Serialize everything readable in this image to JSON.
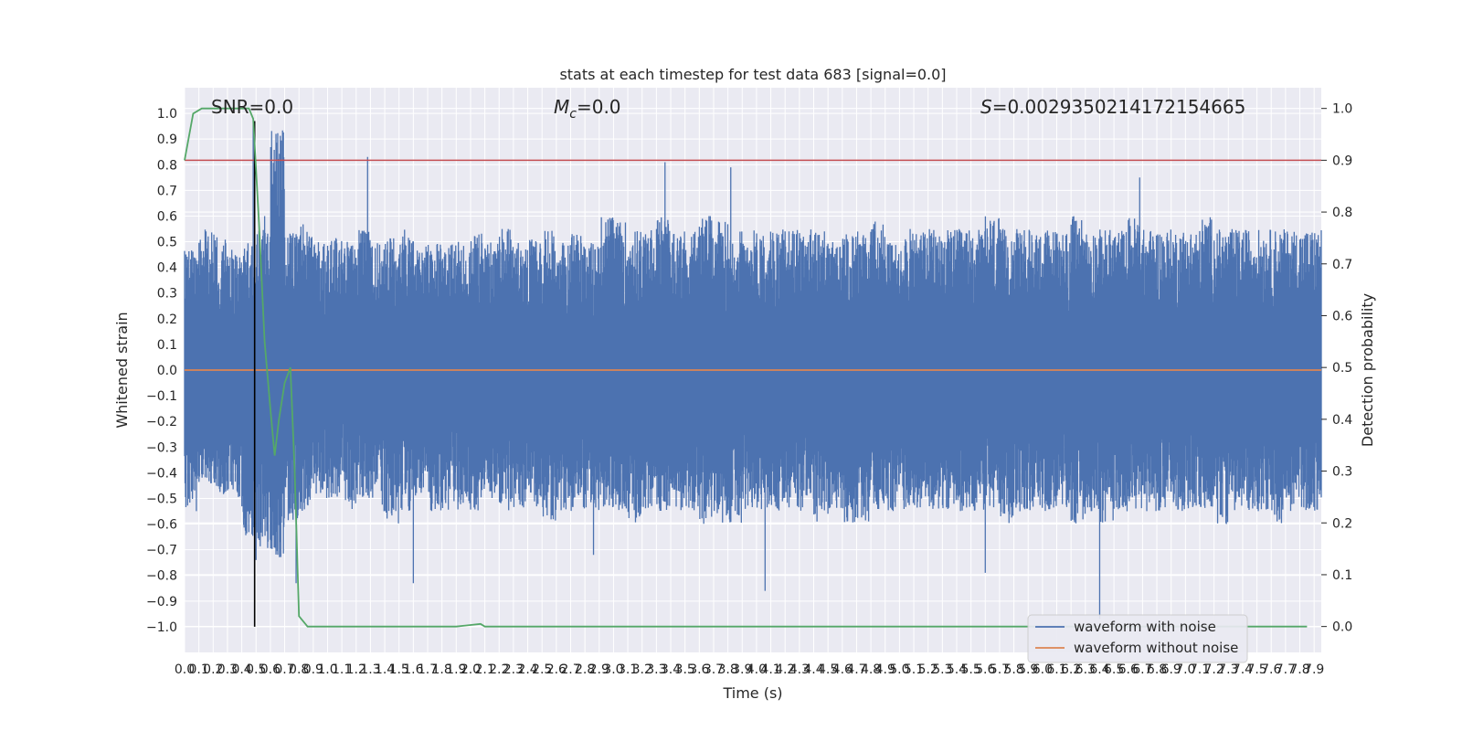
{
  "chart_data": {
    "type": "line",
    "title": "stats at each timestep for test data 683 [signal=0.0]",
    "xlabel": "Time (s)",
    "ylabel": "Whitened strain",
    "y2label": "Detection probability",
    "xlim": [
      0.0,
      7.95
    ],
    "ylim": [
      -1.1,
      1.1
    ],
    "y2lim": [
      -0.05,
      1.04
    ],
    "x_ticks": [
      0.0,
      0.1,
      0.2,
      0.3,
      0.4,
      0.5,
      0.6,
      0.7,
      0.8,
      0.9,
      1.0,
      1.1,
      1.2,
      1.3,
      1.4,
      1.5,
      1.6,
      1.7,
      1.8,
      1.9,
      2.0,
      2.1,
      2.2,
      2.3,
      2.4,
      2.5,
      2.6,
      2.7,
      2.8,
      2.9,
      3.0,
      3.1,
      3.2,
      3.3,
      3.4,
      3.5,
      3.6,
      3.7,
      3.8,
      3.9,
      4.0,
      4.1,
      4.2,
      4.3,
      4.4,
      4.5,
      4.6,
      4.7,
      4.8,
      4.9,
      5.0,
      5.1,
      5.2,
      5.3,
      5.4,
      5.5,
      5.6,
      5.7,
      5.8,
      5.9,
      6.0,
      6.1,
      6.2,
      6.3,
      6.4,
      6.5,
      6.6,
      6.7,
      6.8,
      6.9,
      7.0,
      7.1,
      7.2,
      7.3,
      7.4,
      7.5,
      7.6,
      7.7,
      7.8,
      7.9
    ],
    "y_ticks": [
      -1.0,
      -0.9,
      -0.8,
      -0.7,
      -0.6,
      -0.5,
      -0.4,
      -0.3,
      -0.2,
      -0.1,
      0.0,
      0.1,
      0.2,
      0.3,
      0.4,
      0.5,
      0.6,
      0.7,
      0.8,
      0.9,
      1.0
    ],
    "y2_ticks": [
      0.0,
      0.1,
      0.2,
      0.3,
      0.4,
      0.5,
      0.6,
      0.7,
      0.8,
      0.9,
      1.0
    ],
    "grid": true,
    "legend_position": "lower-right",
    "annotations": {
      "snr": "SNR=0.0",
      "mc_symbol": "M",
      "mc_sub": "c",
      "mc_rest": "=0.0",
      "s_symbol": "S",
      "s_rest": "=0.0029350214172154665"
    },
    "series": [
      {
        "name": "waveform with noise",
        "axis": "left",
        "color": "#4c72b0",
        "envelope_upper": [
          0.47,
          0.55,
          0.53,
          0.5,
          0.5,
          0.55,
          0.95,
          0.55,
          0.58,
          0.5,
          0.52,
          0.5,
          0.55,
          0.5,
          0.52,
          0.55,
          0.5,
          0.5,
          0.5,
          0.5,
          0.55,
          0.5,
          0.55,
          0.5,
          0.52,
          0.55,
          0.5,
          0.55,
          0.5,
          0.6,
          0.58,
          0.55,
          0.55,
          0.6,
          0.55,
          0.55,
          0.6,
          0.58,
          0.55,
          0.55,
          0.55,
          0.55,
          0.55,
          0.55,
          0.55,
          0.5,
          0.55,
          0.55,
          0.58,
          0.5,
          0.55,
          0.55,
          0.55,
          0.55,
          0.55,
          0.55,
          0.6,
          0.55,
          0.55,
          0.55,
          0.55,
          0.55,
          0.6,
          0.55,
          0.55,
          0.55,
          0.6,
          0.55,
          0.55,
          0.55,
          0.55,
          0.6,
          0.55,
          0.55,
          0.55,
          0.55,
          0.55,
          0.55,
          0.55,
          0.55
        ],
        "envelope_lower": [
          -0.55,
          -0.45,
          -0.5,
          -0.5,
          -0.65,
          -0.7,
          -0.73,
          -0.6,
          -0.55,
          -0.5,
          -0.5,
          -0.55,
          -0.5,
          -0.55,
          -0.6,
          -0.55,
          -0.5,
          -0.55,
          -0.55,
          -0.55,
          -0.55,
          -0.5,
          -0.55,
          -0.55,
          -0.55,
          -0.6,
          -0.55,
          -0.55,
          -0.55,
          -0.55,
          -0.55,
          -0.6,
          -0.55,
          -0.55,
          -0.55,
          -0.55,
          -0.6,
          -0.6,
          -0.6,
          -0.55,
          -0.55,
          -0.55,
          -0.55,
          -0.55,
          -0.6,
          -0.55,
          -0.6,
          -0.6,
          -0.55,
          -0.55,
          -0.55,
          -0.55,
          -0.55,
          -0.55,
          -0.55,
          -0.55,
          -0.55,
          -0.6,
          -0.55,
          -0.55,
          -0.55,
          -0.55,
          -0.6,
          -0.55,
          -0.6,
          -0.55,
          -0.55,
          -0.55,
          -0.55,
          -0.55,
          -0.55,
          -0.55,
          -0.6,
          -0.55,
          -0.55,
          -0.55,
          -0.6,
          -0.55,
          -0.55,
          -0.55
        ],
        "spikes": [
          [
            0.48,
            0.97
          ],
          [
            0.56,
            0.6
          ],
          [
            1.28,
            0.83
          ],
          [
            3.36,
            0.81
          ],
          [
            3.82,
            0.79
          ],
          [
            6.68,
            0.75
          ],
          [
            4.06,
            -0.86
          ],
          [
            1.6,
            -0.83
          ],
          [
            0.5,
            -0.74
          ],
          [
            5.6,
            -0.79
          ],
          [
            6.4,
            -0.97
          ],
          [
            2.86,
            -0.72
          ],
          [
            0.78,
            -0.83
          ]
        ]
      },
      {
        "name": "waveform without noise",
        "axis": "left",
        "color": "#dd8452",
        "x": [
          0.0,
          7.95
        ],
        "y": [
          0.0,
          0.0
        ]
      },
      {
        "axis": "right",
        "color": "#55a868",
        "x": [
          0.0,
          0.06,
          0.12,
          0.2,
          0.28,
          0.35,
          0.4,
          0.45,
          0.48,
          0.52,
          0.56,
          0.6,
          0.63,
          0.66,
          0.7,
          0.74,
          0.77,
          0.8,
          0.86,
          1.0,
          1.5,
          1.9,
          2.0,
          2.07,
          2.1,
          2.2,
          3.0,
          4.0,
          5.0,
          6.0,
          7.0,
          7.85
        ],
        "y": [
          0.9,
          0.99,
          1.0,
          1.0,
          1.0,
          1.0,
          1.0,
          1.0,
          0.98,
          0.78,
          0.55,
          0.42,
          0.33,
          0.4,
          0.47,
          0.5,
          0.3,
          0.02,
          0.0,
          0.0,
          0.0,
          0.0,
          0.003,
          0.005,
          0.0,
          0.0,
          0.0,
          0.0,
          0.0,
          0.0,
          0.0,
          0.0
        ]
      }
    ],
    "reference_lines": {
      "threshold": {
        "axis": "right",
        "value": 0.9,
        "color": "#c44e52"
      },
      "marker": {
        "axis": "x",
        "value": 0.49,
        "color": "#000000"
      }
    }
  }
}
